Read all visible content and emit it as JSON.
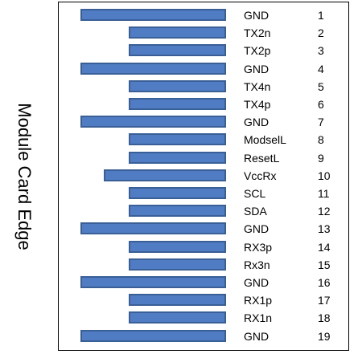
{
  "side_label": "Module Card Edge",
  "pins": [
    {
      "signal": "GND",
      "number": "1",
      "pad": "long"
    },
    {
      "signal": "TX2n",
      "number": "2",
      "pad": "short"
    },
    {
      "signal": "TX2p",
      "number": "3",
      "pad": "short"
    },
    {
      "signal": "GND",
      "number": "4",
      "pad": "long"
    },
    {
      "signal": "TX4n",
      "number": "5",
      "pad": "short"
    },
    {
      "signal": "TX4p",
      "number": "6",
      "pad": "short"
    },
    {
      "signal": "GND",
      "number": "7",
      "pad": "long"
    },
    {
      "signal": "ModselL",
      "number": "8",
      "pad": "short"
    },
    {
      "signal": "ResetL",
      "number": "9",
      "pad": "short"
    },
    {
      "signal": "VccRx",
      "number": "10",
      "pad": "mid"
    },
    {
      "signal": "SCL",
      "number": "11",
      "pad": "short"
    },
    {
      "signal": "SDA",
      "number": "12",
      "pad": "short"
    },
    {
      "signal": "GND",
      "number": "13",
      "pad": "long"
    },
    {
      "signal": "RX3p",
      "number": "14",
      "pad": "short"
    },
    {
      "signal": "Rx3n",
      "number": "15",
      "pad": "short"
    },
    {
      "signal": "GND",
      "number": "16",
      "pad": "long"
    },
    {
      "signal": "RX1p",
      "number": "17",
      "pad": "short"
    },
    {
      "signal": "RX1n",
      "number": "18",
      "pad": "short"
    },
    {
      "signal": "GND",
      "number": "19",
      "pad": "long"
    }
  ],
  "colors": {
    "pad_fill": "#4f7cc2",
    "pad_border": "#3a5f96"
  }
}
